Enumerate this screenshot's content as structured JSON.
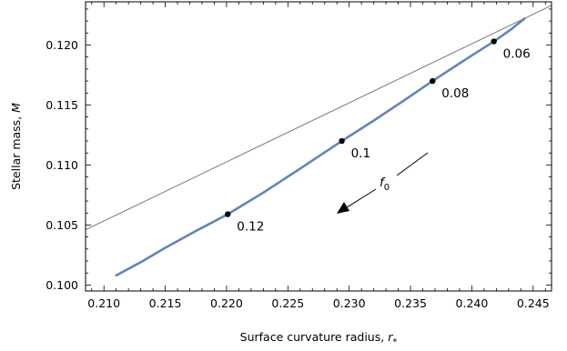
{
  "chart_data": {
    "type": "line",
    "xlabel": "Surface curvature radius, ",
    "xlabel_var": "r",
    "xlabel_sub": "*",
    "ylabel": "Stellar mass, ",
    "ylabel_var": "M",
    "xlim": [
      0.2085,
      0.2465
    ],
    "ylim": [
      0.0995,
      0.1236
    ],
    "xticks": [
      0.21,
      0.215,
      0.22,
      0.225,
      0.23,
      0.235,
      0.24,
      0.245
    ],
    "xtick_labels": [
      "0.210",
      "0.215",
      "0.220",
      "0.225",
      "0.230",
      "0.235",
      "0.240",
      "0.245"
    ],
    "yticks": [
      0.1,
      0.105,
      0.11,
      0.115,
      0.12
    ],
    "ytick_labels": [
      "0.100",
      "0.105",
      "0.110",
      "0.115",
      "0.120"
    ],
    "grid": false,
    "series": [
      {
        "color": "#6384b8",
        "style": "thick",
        "x": [
          0.211,
          0.213,
          0.215,
          0.2175,
          0.2201,
          0.223,
          0.226,
          0.2294,
          0.232,
          0.2345,
          0.2368,
          0.2395,
          0.2418,
          0.2432,
          0.2438,
          0.2443
        ],
        "y": [
          0.1008,
          0.1019,
          0.1031,
          0.1045,
          0.1059,
          0.1077,
          0.1097,
          0.112,
          0.1137,
          0.1154,
          0.117,
          0.1188,
          0.1203,
          0.1213,
          0.1218,
          0.1222
        ]
      },
      {
        "color": "#777777",
        "style": "thin",
        "x": [
          0.2085,
          0.2465
        ],
        "y": [
          0.1046,
          0.1233
        ]
      }
    ],
    "markers": [
      {
        "x": 0.2201,
        "y": 0.1059,
        "label": "0.12"
      },
      {
        "x": 0.2294,
        "y": 0.112,
        "label": "0.1"
      },
      {
        "x": 0.2368,
        "y": 0.117,
        "label": "0.08"
      },
      {
        "x": 0.2418,
        "y": 0.1203,
        "label": "0.06"
      }
    ],
    "annotation": {
      "text_var": "f",
      "text_sub": "0",
      "direction": "decreasing along curve"
    }
  }
}
